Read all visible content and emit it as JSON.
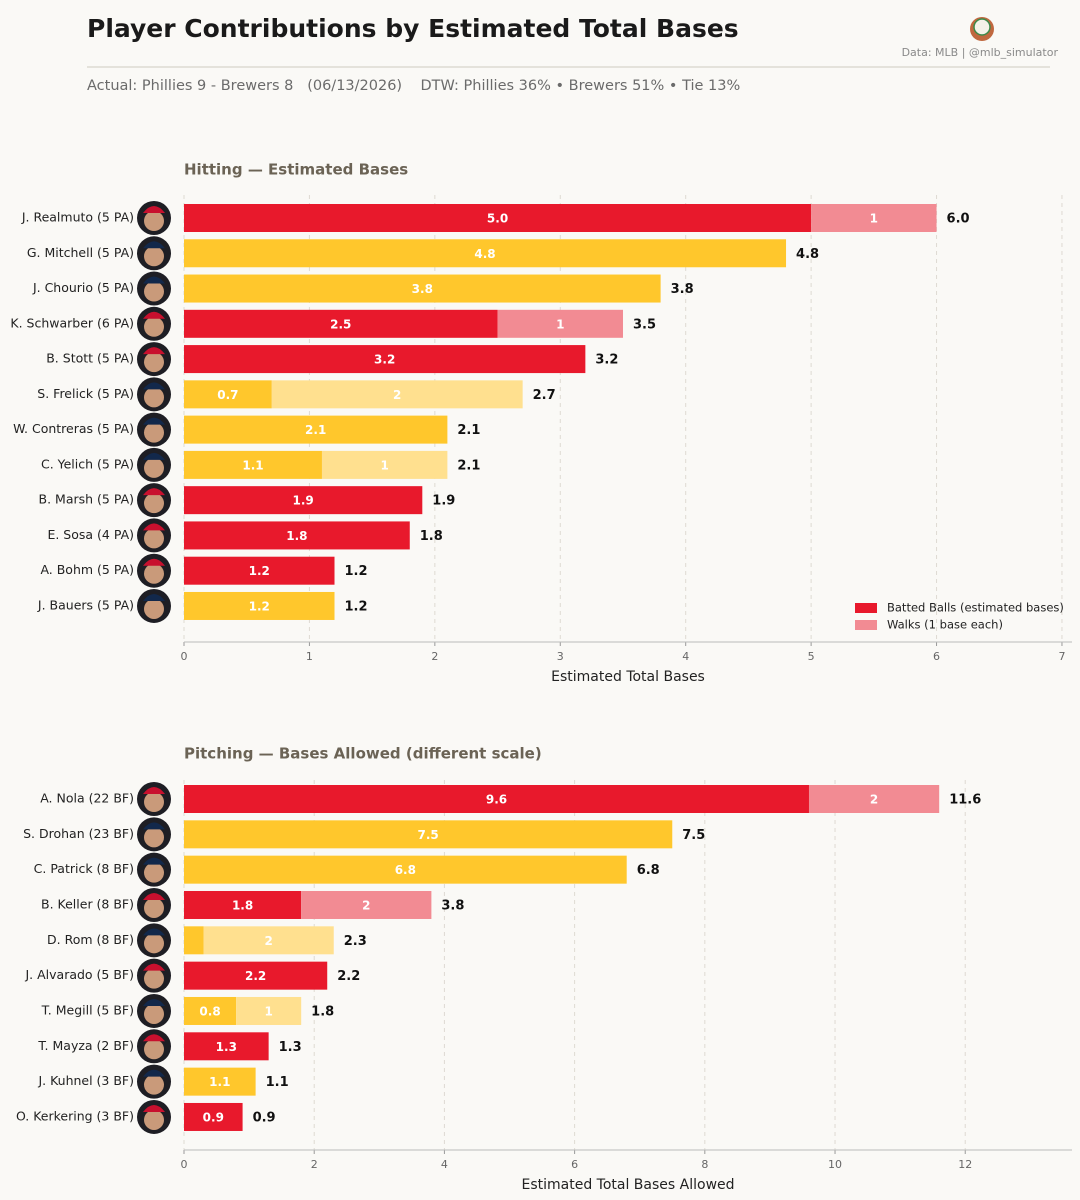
{
  "header": {
    "title": "Player Contributions by Estimated Total Bases",
    "source": "Data: MLB  |  @mlb_simulator",
    "subtitle": "Actual: Phillies 9 - Brewers 8   (06/13/2026)    DTW: Phillies 36% • Brewers 51% • Tie 13%"
  },
  "chart_data": [
    {
      "type": "bar",
      "orientation": "horizontal",
      "stacked": true,
      "title": "Hitting  —  Estimated Bases",
      "categories": [
        "J. Realmuto  (5 PA)",
        "G. Mitchell  (5 PA)",
        "J. Chourio  (5 PA)",
        "K. Schwarber  (6 PA)",
        "B. Stott  (5 PA)",
        "S. Frelick  (5 PA)",
        "W. Contreras  (5 PA)",
        "C. Yelich  (5 PA)",
        "B. Marsh  (5 PA)",
        "E. Sosa  (4 PA)",
        "A. Bohm  (5 PA)",
        "J. Bauers  (5 PA)"
      ],
      "series": [
        {
          "name": "Batted Balls (estimated bases)",
          "color": "#e8192c",
          "values": [
            5.0,
            4.8,
            3.8,
            2.5,
            3.2,
            0.7,
            2.1,
            1.1,
            1.9,
            1.8,
            1.2,
            1.2
          ],
          "value_labels": [
            "5.0",
            "4.8",
            "3.8",
            "2.5",
            "3.2",
            "0.7",
            "2.1",
            "1.1",
            "1.9",
            "1.8",
            "1.2",
            "1.2"
          ]
        },
        {
          "name": "Walks (1 base each)",
          "color": "#f28b93",
          "values": [
            1,
            null,
            null,
            1,
            null,
            2,
            null,
            1,
            null,
            null,
            null,
            null
          ]
        }
      ],
      "totals": [
        6.0,
        4.8,
        3.8,
        3.5,
        3.2,
        2.7,
        2.1,
        2.1,
        1.9,
        1.8,
        1.2,
        1.2
      ],
      "total_labels": [
        "6.0",
        "4.8",
        "3.8",
        "3.5",
        "3.2",
        "2.7",
        "2.1",
        "2.1",
        "1.9",
        "1.8",
        "1.2",
        "1.2"
      ],
      "bar_colors": [
        "#e8192c",
        "#ffc72c",
        "#ffc72c",
        "#e8192c",
        "#e8192c",
        "#ffc72c",
        "#ffc72c",
        "#ffc72c",
        "#e8192c",
        "#e8192c",
        "#e8192c",
        "#ffc72c"
      ],
      "walk_colors": [
        "#f28b93",
        "#ffe08f",
        "#ffe08f",
        "#f28b93",
        "#f28b93",
        "#ffe08f",
        "#ffe08f",
        "#ffe08f",
        "#f28b93",
        "#f28b93",
        "#f28b93",
        "#ffe08f"
      ],
      "xlabel": "Estimated Total Bases",
      "xlim": [
        0,
        7.08
      ],
      "xticks": [
        0,
        1,
        2,
        3,
        4,
        5,
        6,
        7
      ],
      "grid": true,
      "legend": "lower right"
    },
    {
      "type": "bar",
      "orientation": "horizontal",
      "stacked": true,
      "title": "Pitching  —  Bases Allowed  (different scale)",
      "categories": [
        "A. Nola  (22 BF)",
        "S. Drohan  (23 BF)",
        "C. Patrick  (8 BF)",
        "B. Keller  (8 BF)",
        "D. Rom  (8 BF)",
        "J. Alvarado  (5 BF)",
        "T. Megill  (5 BF)",
        "T. Mayza  (2 BF)",
        "J. Kuhnel  (3 BF)",
        "O. Kerkering  (3 BF)"
      ],
      "series": [
        {
          "name": "Batted Balls (estimated bases)",
          "color": "#e8192c",
          "values": [
            9.6,
            7.5,
            6.8,
            1.8,
            0.3,
            2.2,
            0.8,
            1.3,
            1.1,
            0.9
          ],
          "value_labels": [
            "9.6",
            "7.5",
            "6.8",
            "1.8",
            null,
            "2.2",
            "0.8",
            "1.3",
            "1.1",
            "0.9"
          ]
        },
        {
          "name": "Walks (1 base each)",
          "color": "#f28b93",
          "values": [
            2,
            null,
            null,
            2,
            2,
            null,
            1,
            null,
            null,
            null
          ]
        }
      ],
      "totals": [
        11.6,
        7.5,
        6.8,
        3.8,
        2.3,
        2.2,
        1.8,
        1.3,
        1.1,
        0.9
      ],
      "total_labels": [
        "11.6",
        "7.5",
        "6.8",
        "3.8",
        "2.3",
        "2.2",
        "1.8",
        "1.3",
        "1.1",
        "0.9"
      ],
      "bar_colors": [
        "#e8192c",
        "#ffc72c",
        "#ffc72c",
        "#e8192c",
        "#ffc72c",
        "#e8192c",
        "#ffc72c",
        "#e8192c",
        "#ffc72c",
        "#e8192c"
      ],
      "walk_colors": [
        "#f28b93",
        "#ffe08f",
        "#ffe08f",
        "#f28b93",
        "#ffe08f",
        "#f28b93",
        "#ffe08f",
        "#f28b93",
        "#ffe08f",
        "#f28b93"
      ],
      "xlabel": "Estimated Total Bases Allowed",
      "xlim": [
        0,
        13.64
      ],
      "xticks": [
        0,
        2,
        4,
        6,
        8,
        10,
        12
      ],
      "grid": true
    }
  ]
}
